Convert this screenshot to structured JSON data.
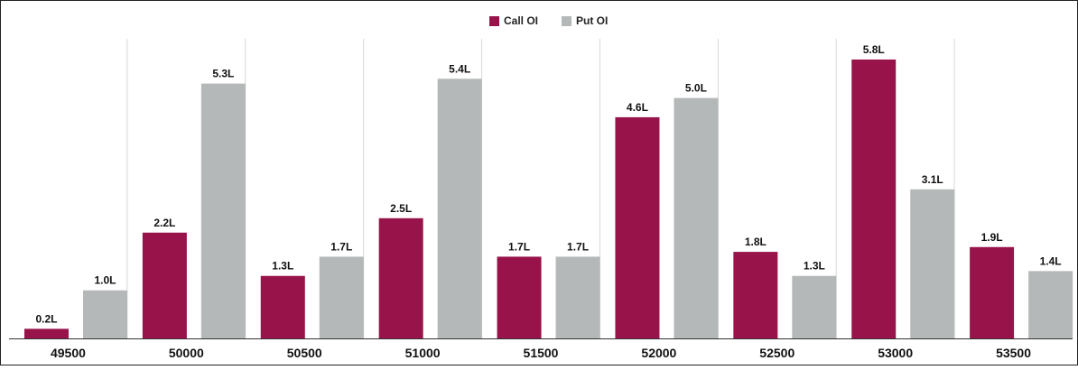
{
  "chart_data": {
    "type": "bar",
    "title": "",
    "xlabel": "",
    "ylabel": "",
    "categories": [
      "49500",
      "50000",
      "50500",
      "51000",
      "51500",
      "52000",
      "52500",
      "53000",
      "53500"
    ],
    "series": [
      {
        "name": "Call OI",
        "color": "#981349",
        "values": [
          0.2,
          2.2,
          1.3,
          2.5,
          1.7,
          4.6,
          1.8,
          5.8,
          1.9
        ],
        "labels": [
          "0.2L",
          "2.2L",
          "1.3L",
          "2.5L",
          "1.7L",
          "4.6L",
          "1.8L",
          "5.8L",
          "1.9L"
        ]
      },
      {
        "name": "Put OI",
        "color": "#b5b8b8",
        "values": [
          1.0,
          5.3,
          1.7,
          5.4,
          1.7,
          5.0,
          1.3,
          3.1,
          1.4
        ],
        "labels": [
          "1.0L",
          "5.3L",
          "1.7L",
          "5.4L",
          "1.7L",
          "5.0L",
          "1.3L",
          "3.1L",
          "1.4L"
        ]
      }
    ],
    "ylim": [
      0,
      6.7
    ],
    "grid": "vertical separators",
    "legend": "top-center"
  }
}
